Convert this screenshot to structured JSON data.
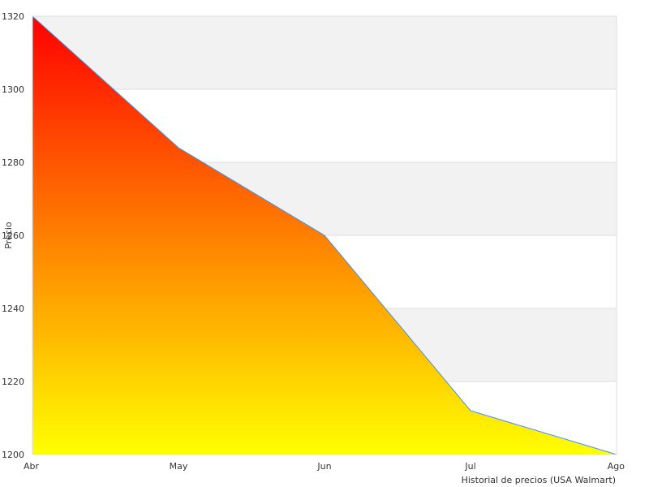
{
  "chart_data": {
    "type": "area",
    "categories": [
      "Abr",
      "May",
      "Jun",
      "Jul",
      "Ago"
    ],
    "values": [
      1320,
      1284,
      1260,
      1212,
      1200
    ],
    "ylabel": "Precio",
    "xlabel": "Historial de precios (USA Walmart)",
    "ylim": [
      1200,
      1320
    ],
    "yticks": [
      1200,
      1220,
      1240,
      1260,
      1280,
      1300,
      1320
    ],
    "grid": true,
    "line_color": "#4a90d9",
    "fill_gradient": [
      "#ff0000",
      "#ffff00"
    ],
    "band_color": "#f2f2f2",
    "grid_color": "#dddddd"
  }
}
